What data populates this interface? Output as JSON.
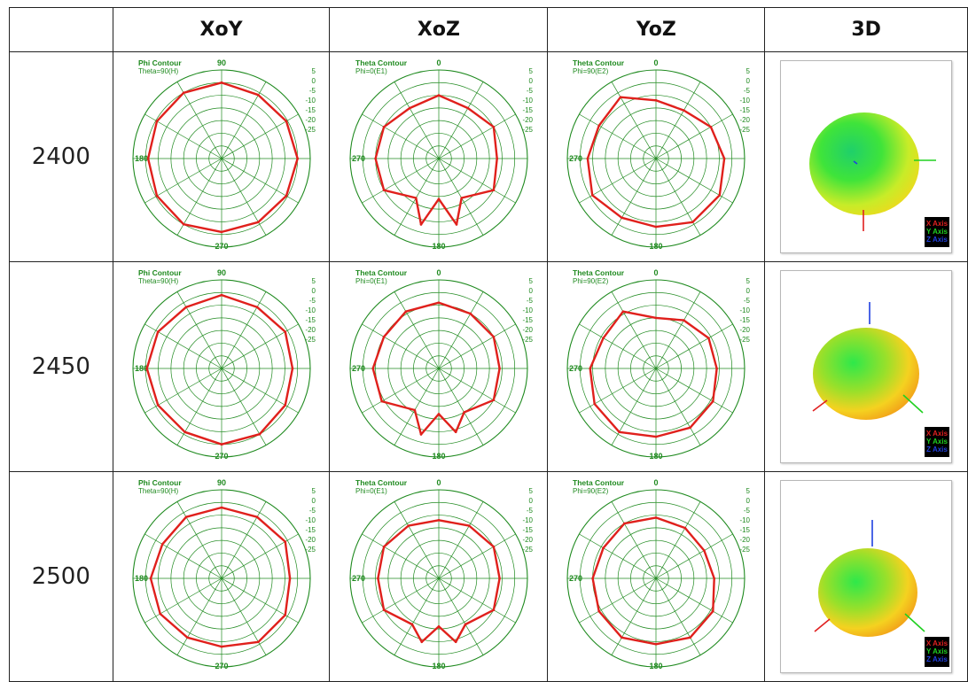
{
  "header": {
    "corner": "",
    "columns": [
      "XoY",
      "XoZ",
      "YoZ",
      "3D"
    ]
  },
  "rows": [
    {
      "label": "2400"
    },
    {
      "label": "2450"
    },
    {
      "label": "2500"
    }
  ],
  "plot_text": {
    "phi_title": "Phi Contour",
    "phi_sub": "Theta=90(H)",
    "theta_xoz_title": "Theta Contour",
    "theta_xoz_sub": "Phi=0(E1)",
    "theta_yoz_title": "Theta Contour",
    "theta_yoz_sub": "Phi=90(E2)",
    "radial_ticks": [
      "5",
      "0",
      "-5",
      "-10",
      "-15",
      "-20",
      "-25"
    ],
    "angle_90": "90",
    "angle_180": "180",
    "angle_270": "270",
    "angle_0": "0"
  },
  "legend_3d": [
    "X Axis",
    "Y Axis",
    "Z Axis"
  ],
  "colors": {
    "grid": "#1f8a1f",
    "trace": "#e0201c",
    "x_axis": "#e02020",
    "y_axis": "#20d020",
    "z_axis": "#2040e0"
  },
  "chart_data": [
    {
      "type": "polar",
      "plane": "XoY",
      "frequency": "2400",
      "rlim": [
        -30,
        5
      ],
      "radial_ticks": [
        5,
        0,
        -5,
        -10,
        -15,
        -20,
        -25
      ],
      "angles_deg": [
        0,
        30,
        60,
        90,
        120,
        150,
        180,
        210,
        240,
        270,
        300,
        330
      ],
      "gain_db": [
        0,
        -1,
        -0.5,
        0,
        -0.5,
        -1,
        -1,
        0,
        -0.5,
        -1,
        -0.5,
        0
      ]
    },
    {
      "type": "polar",
      "plane": "XoZ",
      "frequency": "2400",
      "rlim": [
        -30,
        5
      ],
      "radial_ticks": [
        5,
        0,
        -5,
        -10,
        -15,
        -20,
        -25
      ],
      "angles_deg": [
        0,
        30,
        60,
        90,
        120,
        150,
        165,
        180,
        195,
        210,
        240,
        270,
        300,
        330
      ],
      "gain_db": [
        -5,
        -7,
        -5,
        -7,
        -5,
        -12,
        -3,
        -14,
        -3,
        -12,
        -5,
        -5,
        -5,
        -7
      ]
    },
    {
      "type": "polar",
      "plane": "YoZ",
      "frequency": "2400",
      "rlim": [
        -30,
        5
      ],
      "radial_ticks": [
        5,
        0,
        -5,
        -10,
        -15,
        -20,
        -25
      ],
      "angles_deg": [
        0,
        30,
        60,
        90,
        120,
        150,
        180,
        210,
        240,
        270,
        300,
        330
      ],
      "gain_db": [
        -7,
        -8,
        -5,
        -3,
        -1,
        -1,
        -3,
        -3,
        -1,
        -3,
        -4,
        -2
      ]
    },
    {
      "type": "polar",
      "plane": "XoY",
      "frequency": "2450",
      "rlim": [
        -30,
        5
      ],
      "radial_ticks": [
        5,
        0,
        -5,
        -10,
        -15,
        -20,
        -25
      ],
      "angles_deg": [
        0,
        30,
        60,
        90,
        120,
        150,
        180,
        210,
        240,
        270,
        300,
        330
      ],
      "gain_db": [
        -1,
        -2,
        -1,
        -2,
        -1,
        0,
        0,
        -1,
        -1,
        -0.5,
        -1,
        -2
      ]
    },
    {
      "type": "polar",
      "plane": "XoZ",
      "frequency": "2450",
      "rlim": [
        -30,
        5
      ],
      "radial_ticks": [
        5,
        0,
        -5,
        -10,
        -15,
        -20,
        -25
      ],
      "angles_deg": [
        0,
        30,
        60,
        90,
        120,
        150,
        165,
        180,
        195,
        210,
        240,
        270,
        300,
        330
      ],
      "gain_db": [
        -4,
        -5,
        -5,
        -6,
        -5,
        -10,
        -4,
        -12,
        -3,
        -11,
        -4,
        -4,
        -5,
        -4
      ]
    },
    {
      "type": "polar",
      "plane": "YoZ",
      "frequency": "2450",
      "rlim": [
        -30,
        5
      ],
      "radial_ticks": [
        5,
        0,
        -5,
        -10,
        -15,
        -20,
        -25
      ],
      "angles_deg": [
        0,
        30,
        60,
        90,
        120,
        150,
        180,
        210,
        240,
        270,
        300,
        330
      ],
      "gain_db": [
        -10,
        -8,
        -6,
        -6,
        -4,
        -3,
        -3,
        -1,
        -2,
        -4,
        -6,
        -4
      ]
    },
    {
      "type": "polar",
      "plane": "XoY",
      "frequency": "2500",
      "rlim": [
        -30,
        5
      ],
      "radial_ticks": [
        5,
        0,
        -5,
        -10,
        -15,
        -20,
        -25
      ],
      "angles_deg": [
        0,
        30,
        60,
        90,
        120,
        150,
        180,
        210,
        240,
        270,
        300,
        330
      ],
      "gain_db": [
        -2,
        -2,
        -1,
        -3,
        -1,
        -1,
        -3,
        -3,
        -2,
        -2,
        -3,
        -2
      ]
    },
    {
      "type": "polar",
      "plane": "XoZ",
      "frequency": "2500",
      "rlim": [
        -30,
        5
      ],
      "radial_ticks": [
        5,
        0,
        -5,
        -10,
        -15,
        -20,
        -25
      ],
      "angles_deg": [
        0,
        30,
        60,
        90,
        120,
        150,
        165,
        180,
        195,
        210,
        240,
        270,
        300,
        330
      ],
      "gain_db": [
        -7,
        -6,
        -5,
        -6,
        -5,
        -9,
        -4,
        -11,
        -4,
        -9,
        -5,
        -6,
        -5,
        -6
      ]
    },
    {
      "type": "polar",
      "plane": "YoZ",
      "frequency": "2500",
      "rlim": [
        -30,
        5
      ],
      "radial_ticks": [
        5,
        0,
        -5,
        -10,
        -15,
        -20,
        -25
      ],
      "angles_deg": [
        0,
        30,
        60,
        90,
        120,
        150,
        180,
        210,
        240,
        270,
        300,
        330
      ],
      "gain_db": [
        -6,
        -7,
        -8,
        -7,
        -4,
        -3,
        -4,
        -3,
        -4,
        -5,
        -6,
        -5
      ]
    }
  ]
}
